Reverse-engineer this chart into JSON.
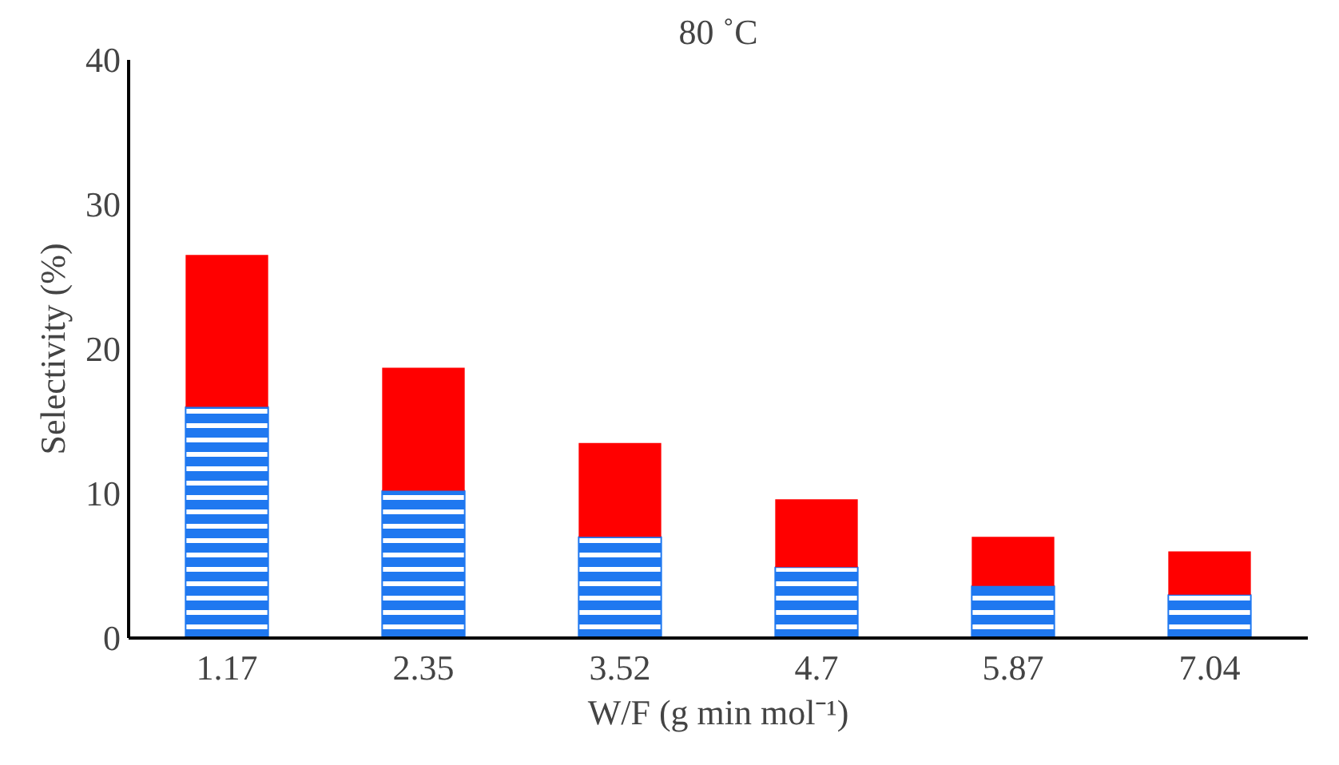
{
  "chart_data": {
    "type": "bar",
    "title": "80 ˚C",
    "xlabel": "W/F (g min mol⁻¹)",
    "ylabel": "Selectivity (%)",
    "categories": [
      "1.17",
      "2.35",
      "3.52",
      "4.7",
      "5.87",
      "7.04"
    ],
    "stacked": true,
    "series": [
      {
        "color": "#1f78f0",
        "values": [
          16.0,
          10.2,
          7.0,
          4.9,
          3.6,
          3.0
        ]
      },
      {
        "color": "#ff0000",
        "values": [
          10.5,
          8.5,
          6.5,
          4.7,
          3.4,
          3.0
        ]
      }
    ],
    "ylim": [
      0,
      40
    ],
    "yticks": [
      0,
      10,
      20,
      30,
      40
    ],
    "grid": false
  }
}
